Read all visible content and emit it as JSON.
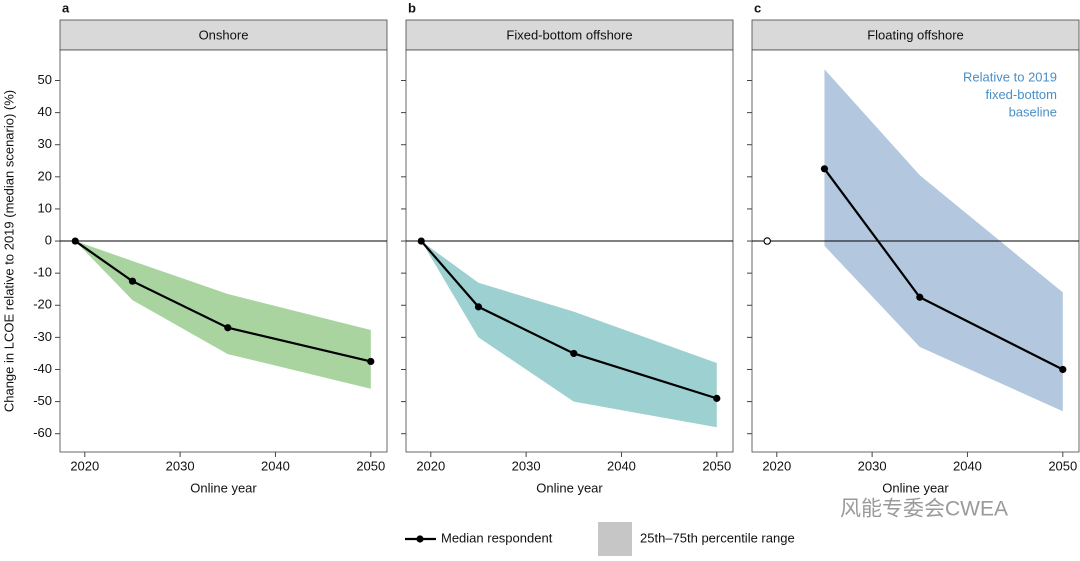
{
  "ylabel": "Change in LCOE relative to 2019 (median scenario) (%)",
  "legend": {
    "line": {
      "name": "Median respondent",
      "color": "#000000"
    },
    "band": {
      "name": "25th–75th percentile range",
      "color": "#c6c6c6"
    }
  },
  "watermark": "风能专委会CWEA",
  "chart_data": [
    {
      "type": "line",
      "label": "a",
      "title": "Onshore",
      "xlabel": "Online year",
      "x": [
        2019,
        2025,
        2035,
        2050
      ],
      "median": [
        0,
        -12.5,
        -27,
        -37.5
      ],
      "band_upper": [
        0,
        -6.2,
        -16.5,
        -27.7
      ],
      "band_lower": [
        0,
        -18.4,
        -35.2,
        -46
      ],
      "band_color": "#a9d4a0",
      "xlim": [
        2017.4,
        2051.7
      ],
      "xticks": [
        2020,
        2030,
        2040,
        2050
      ],
      "ylim": [
        -65.7,
        59.5
      ],
      "yticks": [
        -60,
        -50,
        -40,
        -30,
        -20,
        -10,
        0,
        10,
        20,
        30,
        40,
        50
      ],
      "hline": 0
    },
    {
      "type": "line",
      "label": "b",
      "title": "Fixed-bottom offshore",
      "xlabel": "Online year",
      "x": [
        2019,
        2025,
        2035,
        2050
      ],
      "median": [
        0,
        -20.5,
        -35,
        -49
      ],
      "band_upper": [
        0,
        -13,
        -22,
        -38
      ],
      "band_lower": [
        0,
        -30,
        -50,
        -58
      ],
      "band_color": "#9dd0d1",
      "xlim": [
        2017.4,
        2051.7
      ],
      "xticks": [
        2020,
        2030,
        2040,
        2050
      ],
      "ylim": [
        -65.7,
        59.5
      ],
      "hline": 0
    },
    {
      "type": "line",
      "label": "c",
      "title": "Floating offshore",
      "xlabel": "Online year",
      "x": [
        2025,
        2035,
        2050
      ],
      "median": [
        22.5,
        -17.5,
        -40
      ],
      "band_upper": [
        53.5,
        20.5,
        -16
      ],
      "band_lower": [
        -1.5,
        -33,
        -53
      ],
      "band_color": "#b3c8df",
      "baseline": {
        "x": 2019,
        "value": 0
      },
      "annotation": {
        "lines": [
          "Relative to 2019",
          "fixed-bottom",
          "baseline"
        ],
        "color": "#4a8fc7"
      },
      "xlim": [
        2017.4,
        2051.7
      ],
      "xticks": [
        2020,
        2030,
        2040,
        2050
      ],
      "ylim": [
        -65.7,
        59.5
      ],
      "hline": 0
    }
  ]
}
